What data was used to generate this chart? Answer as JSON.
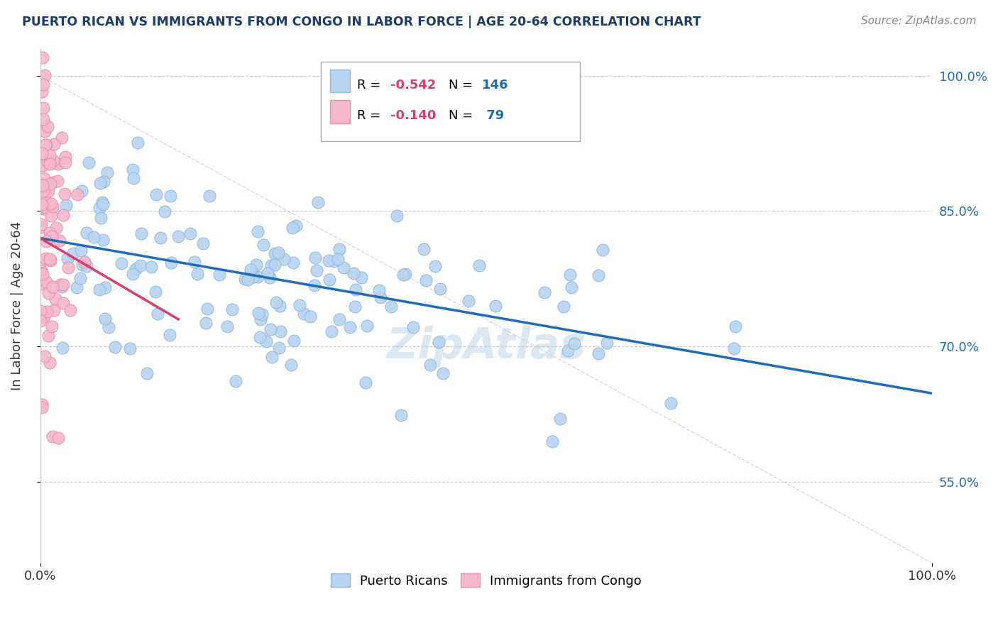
{
  "title": "PUERTO RICAN VS IMMIGRANTS FROM CONGO IN LABOR FORCE | AGE 20-64 CORRELATION CHART",
  "source_text": "Source: ZipAtlas.com",
  "ylabel": "In Labor Force | Age 20-64",
  "xlim": [
    0.0,
    1.0
  ],
  "ylim": [
    0.46,
    1.03
  ],
  "yticks": [
    0.55,
    0.7,
    0.85,
    1.0
  ],
  "ytick_labels": [
    "55.0%",
    "70.0%",
    "85.0%",
    "100.0%"
  ],
  "xtick_labels": [
    "0.0%",
    "100.0%"
  ],
  "xticks": [
    0.0,
    1.0
  ],
  "blue_line_color": "#1e6bb8",
  "pink_line_color": "#d44070",
  "diagonal_line_color": "#cccccc",
  "blue_scatter_color": "#b8d4f0",
  "pink_scatter_color": "#f5b8cc",
  "blue_scatter_edge": "#90b8e0",
  "pink_scatter_edge": "#e890aa",
  "title_color": "#1a3c6e",
  "source_color": "#888888",
  "legend_r_color": "#d44070",
  "legend_n_color": "#1e6bb8",
  "background_color": "#ffffff",
  "grid_color": "#cccccc",
  "watermark_color": "#b0cce0",
  "seed": 12,
  "blue_line_x0": 0.0,
  "blue_line_y0": 0.82,
  "blue_line_x1": 1.0,
  "blue_line_y1": 0.648,
  "pink_line_x0": 0.0,
  "pink_line_y0": 0.82,
  "pink_line_x1": 0.155,
  "pink_line_y1": 0.73
}
